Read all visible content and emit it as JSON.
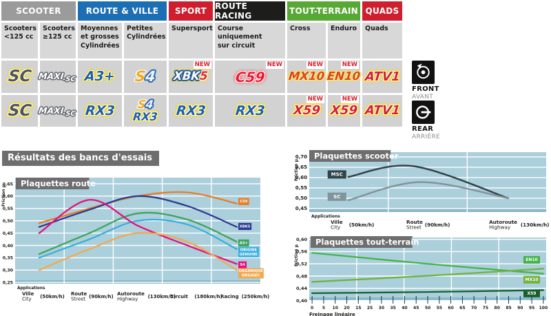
{
  "table": {
    "new_label": "NEW",
    "groups": [
      {
        "label": "SCOOTER",
        "color": "#9b9b9b",
        "span": 2
      },
      {
        "label": "ROUTE & VILLE",
        "color": "#1c6fb5",
        "span": 2
      },
      {
        "label": "SPORT",
        "color": "#cf1f2e",
        "span": 1
      },
      {
        "label": "ROUTE RACING",
        "color": "#1d1d1b",
        "span": 1
      },
      {
        "label": "TOUT-TERRAIN",
        "color": "#57a834",
        "span": 2
      },
      {
        "label": "QUADS",
        "color": "#cf1f2e",
        "span": 1
      }
    ],
    "subheaders": [
      "Scooters\n<125 cc",
      "Scooters\n≥125 cc",
      "Moyennes\net grosses\nCylindrées",
      "Petites\nCylindrées",
      "Supersport",
      "Course\nuniquement\nsur circuit",
      "Cross",
      "Enduro",
      "Quads"
    ],
    "front_row": [
      {
        "name": "sc",
        "kind": "sc",
        "text": "SC"
      },
      {
        "name": "maxi-sc",
        "kind": "maxisc",
        "main": "MAXI",
        "sub": "-SC"
      },
      {
        "name": "a3plus",
        "kind": "blue",
        "text": "A3+"
      },
      {
        "name": "s4",
        "kind": "s4",
        "part1": "S",
        "part2": "4"
      },
      {
        "name": "xbk5",
        "kind": "xbk5",
        "main": "XBK",
        "suffix": "5",
        "new": true
      },
      {
        "name": "c59",
        "kind": "c59",
        "text": "C59",
        "new": true
      },
      {
        "name": "mx10",
        "kind": "fire",
        "text": "MX10",
        "new": true
      },
      {
        "name": "en10",
        "kind": "fire",
        "text": "EN10",
        "new": true
      },
      {
        "name": "atv1",
        "kind": "red",
        "text": "ATV1"
      }
    ],
    "rear_row": [
      {
        "name": "sc",
        "kind": "sc",
        "text": "SC"
      },
      {
        "name": "maxi-sc",
        "kind": "maxisc",
        "main": "MAXI",
        "sub": "-SC"
      },
      {
        "name": "rx3",
        "kind": "blue",
        "text": "RX3"
      },
      {
        "name": "s4-rx3",
        "kind": "stack",
        "top": {
          "kind": "s4",
          "part1": "S",
          "part2": "4"
        },
        "bottom": {
          "kind": "blue",
          "text": "RX3"
        }
      },
      {
        "name": "rx3",
        "kind": "blue",
        "text": "RX3"
      },
      {
        "name": "rx3",
        "kind": "blue",
        "text": "RX3"
      },
      {
        "name": "x59",
        "kind": "red",
        "text": "X59",
        "new": true
      },
      {
        "name": "x59",
        "kind": "red",
        "text": "X59",
        "new": true
      },
      {
        "name": "atv1",
        "kind": "red",
        "text": "ATV1"
      }
    ]
  },
  "side_icons": {
    "front": {
      "label": "FRONT",
      "sublabel": "AVANT"
    },
    "rear": {
      "label": "REAR",
      "sublabel": "ARRIÈRE"
    }
  },
  "results_title": "Résultats des bancs d'essais",
  "chart_data": [
    {
      "id": "route",
      "type": "line",
      "title": "Plaquettes route",
      "ylabel": "Friction µ",
      "xlabel_header": "Applications",
      "ylim": [
        0.245,
        0.675
      ],
      "yticks": [
        0.65,
        0.6,
        0.55,
        0.5,
        0.45,
        0.4,
        0.35,
        0.3,
        0.25
      ],
      "grid_v": [
        0.2,
        0.4,
        0.6,
        0.8
      ],
      "legend_pos": "end",
      "x_applications": [
        {
          "pos": 0.028,
          "line1": "Ville",
          "line2": "City",
          "speed": "(50km/h)"
        },
        {
          "pos": 0.2275,
          "line1": "Route",
          "line2": "Street",
          "speed": "(90km/h)"
        },
        {
          "pos": 0.4157,
          "line1": "Autoroute",
          "line2": "Highway",
          "speed": "(130km/h)"
        },
        {
          "pos": 0.632,
          "line1": "Circuit",
          "line2": "",
          "speed": "(180km/h)"
        },
        {
          "pos": 0.837,
          "line1": "Racing",
          "line2": "",
          "speed": "(250km/h)"
        }
      ],
      "series": [
        {
          "name": "C59",
          "color": "#e87d25",
          "legend": [
            "C59"
          ],
          "legend_value": 0.578,
          "x": [
            0.098,
            0.303,
            0.5,
            0.702,
            0.904
          ],
          "values": [
            0.49,
            0.55,
            0.6,
            0.615,
            0.57
          ]
        },
        {
          "name": "XBK5",
          "color": "#2b3a94",
          "legend": [
            "XBK5"
          ],
          "legend_value": 0.477,
          "x": [
            0.098,
            0.303,
            0.5,
            0.702,
            0.904
          ],
          "values": [
            0.475,
            0.545,
            0.6,
            0.56,
            0.475
          ]
        },
        {
          "name": "A3+",
          "color": "#3fa45c",
          "legend": [
            "A3+"
          ],
          "legend_value": 0.41,
          "x": [
            0.098,
            0.303,
            0.5,
            0.702,
            0.904
          ],
          "values": [
            0.365,
            0.45,
            0.53,
            0.505,
            0.415
          ]
        },
        {
          "name": "ORIGINE GENUINE",
          "color": "#3aaede",
          "legend": [
            "ORIGINE",
            "GENUINE"
          ],
          "legend_value": 0.373,
          "x": [
            0.098,
            0.303,
            0.5,
            0.702,
            0.904
          ],
          "values": [
            0.35,
            0.425,
            0.5,
            0.485,
            0.385
          ]
        },
        {
          "name": "S4",
          "color": "#e4117e",
          "legend": [
            "S4"
          ],
          "legend_value": 0.321,
          "x": [
            0.098,
            0.303,
            0.5,
            0.702,
            0.904
          ],
          "values": [
            0.45,
            0.585,
            0.48,
            0.4,
            0.325
          ]
        },
        {
          "name": "ORGANIQUE ORGANIC",
          "color": "#f2a94e",
          "legend": [
            "ORGANIQUE",
            "ORGANIC"
          ],
          "legend_value": 0.287,
          "x": [
            0.098,
            0.303,
            0.5,
            0.702,
            0.904
          ],
          "values": [
            0.3,
            0.385,
            0.45,
            0.415,
            0.3
          ]
        }
      ]
    },
    {
      "id": "scooter",
      "type": "line",
      "title": "Plaquettes scooter",
      "ylabel": "Friction µ",
      "xlabel_header": "Applications",
      "ylim": [
        0.433,
        0.723
      ],
      "yticks": [
        0.7,
        0.65,
        0.6,
        0.55,
        0.5,
        0.45
      ],
      "grid_v": [
        0.3333,
        0.6667
      ],
      "legend_pos": "start",
      "x_applications": [
        {
          "pos": 0.09,
          "line1": "Ville",
          "line2": "City",
          "speed": "(50km/h)"
        },
        {
          "pos": 0.41,
          "line1": "Route",
          "line2": "Street",
          "speed": "(90km/h)"
        },
        {
          "pos": 0.759,
          "line1": "Autoroute",
          "line2": "Highway",
          "speed": "(130km/h)"
        }
      ],
      "series": [
        {
          "name": "MSC",
          "color": "#33424a",
          "legend": [
            "MSC"
          ],
          "legend_value": 0.615,
          "x": [
            0.165,
            0.44,
            0.84
          ],
          "values": [
            0.603,
            0.655,
            0.5
          ]
        },
        {
          "name": "SC",
          "color": "#81949b",
          "legend": [
            "SC"
          ],
          "legend_value": 0.507,
          "x": [
            0.165,
            0.47,
            0.84
          ],
          "values": [
            0.49,
            0.578,
            0.5
          ]
        }
      ]
    },
    {
      "id": "tt",
      "type": "line",
      "title": "Plaquettes tout-terrain",
      "ylabel": "Friction µ",
      "xlabel": "Freinage linéaire",
      "ylim": [
        0.399,
        0.606
      ],
      "yticks": [
        0.6,
        0.56,
        0.52,
        0.48,
        0.44,
        0.4
      ],
      "grid_v": [
        0.2,
        0.4,
        0.6,
        0.8
      ],
      "xticks": [
        "0",
        "5",
        "10",
        "20",
        "15",
        "25",
        "30",
        "35",
        "40",
        "45",
        "50",
        "55",
        "60",
        "65",
        "70",
        "75",
        "80",
        "85",
        "90",
        "95",
        "100"
      ],
      "legend_pos": "end",
      "series": [
        {
          "name": "EN10",
          "color": "#44b449",
          "legend": [
            "EN10"
          ],
          "legend_value": 0.533,
          "x": [
            0.012,
            0.5,
            0.988
          ],
          "values": [
            0.556,
            0.52,
            0.488
          ]
        },
        {
          "name": "MX10",
          "color": "#71b33c",
          "legend": [
            "MX10"
          ],
          "legend_value": 0.468,
          "x": [
            0.012,
            0.5,
            0.988
          ],
          "values": [
            0.461,
            0.481,
            0.504
          ]
        },
        {
          "name": "X59",
          "color": "#17612f",
          "legend": [
            "X59"
          ],
          "legend_value": 0.423,
          "x": [
            0.012,
            0.5,
            0.988
          ],
          "values": [
            0.424,
            0.428,
            0.434
          ]
        }
      ]
    }
  ]
}
